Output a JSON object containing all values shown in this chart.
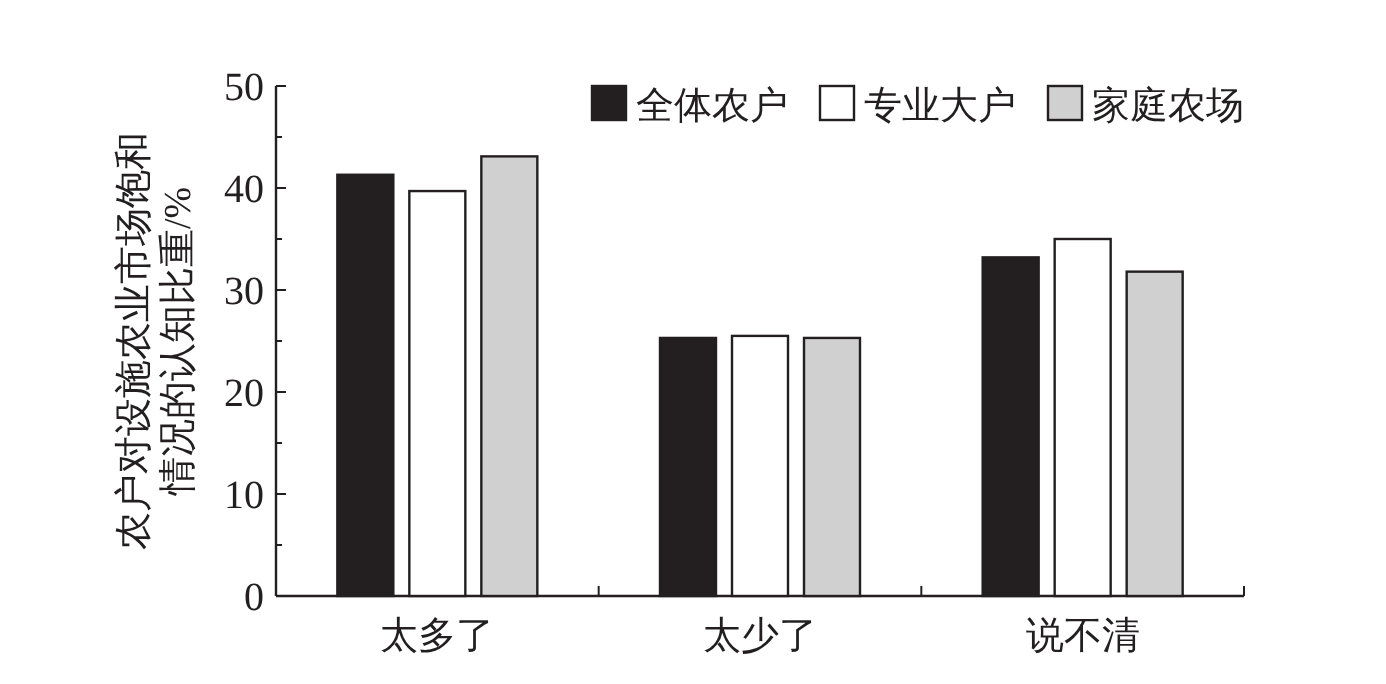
{
  "chart_data": {
    "type": "bar",
    "ylabel": "农户对设施农业市场饱和情况的认知比重/%",
    "categories": [
      "太多了",
      "太少了",
      "说不清"
    ],
    "series": [
      {
        "name": "全体农户",
        "color": "#231f20",
        "values": [
          41.3,
          25.3,
          33.2
        ]
      },
      {
        "name": "专业大户",
        "color": "#ffffff",
        "values": [
          39.7,
          25.5,
          35.0
        ]
      },
      {
        "name": "家庭农场",
        "color": "#d0d0d0",
        "values": [
          43.1,
          25.3,
          31.8
        ]
      }
    ],
    "ylim": [
      0,
      50
    ],
    "yticks": [
      0,
      10,
      20,
      30,
      40,
      50
    ],
    "grid": false,
    "legend": "top right"
  }
}
